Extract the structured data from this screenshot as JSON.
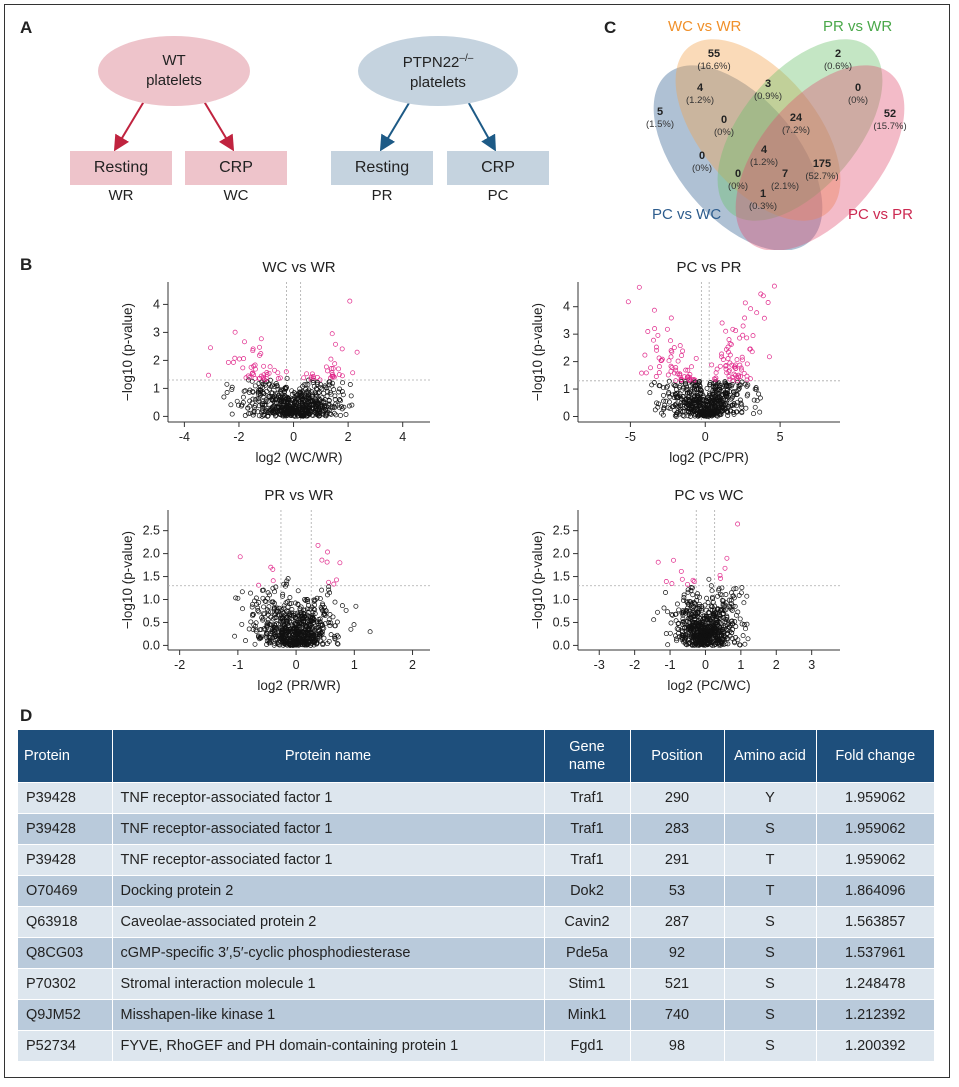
{
  "panel_a": {
    "letter": "A",
    "wt": {
      "line1": "WT",
      "line2": "platelets"
    },
    "ko": {
      "line1": "PTPN22",
      "sup": "–/–",
      "line2": "platelets"
    },
    "boxes": [
      {
        "label": "Resting",
        "code": "WR"
      },
      {
        "label": "CRP",
        "code": "WC"
      },
      {
        "label": "Resting",
        "code": "PR"
      },
      {
        "label": "CRP",
        "code": "PC"
      }
    ],
    "colors": {
      "wt_fill": "#eec4cb",
      "wt_arrow": "#c0233f",
      "ko_fill": "#c5d3df",
      "ko_arrow": "#1d5a86"
    }
  },
  "panel_c": {
    "letter": "C",
    "labels": {
      "wc_wr": "WC vs WR",
      "pr_wr": "PR vs WR",
      "pc_wc": "PC vs WC",
      "pc_pr": "PC vs PR"
    },
    "regions": [
      {
        "n": "55",
        "pct": "(16.6%)"
      },
      {
        "n": "2",
        "pct": "(0.6%)"
      },
      {
        "n": "4",
        "pct": "(1.2%)"
      },
      {
        "n": "3",
        "pct": "(0.9%)"
      },
      {
        "n": "0",
        "pct": "(0%)"
      },
      {
        "n": "5",
        "pct": "(1.5%)"
      },
      {
        "n": "0",
        "pct": "(0%)"
      },
      {
        "n": "24",
        "pct": "(7.2%)"
      },
      {
        "n": "52",
        "pct": "(15.7%)"
      },
      {
        "n": "0",
        "pct": "(0%)"
      },
      {
        "n": "4",
        "pct": "(1.2%)"
      },
      {
        "n": "175",
        "pct": "(52.7%)"
      },
      {
        "n": "0",
        "pct": "(0%)"
      },
      {
        "n": "7",
        "pct": "(2.1%)"
      },
      {
        "n": "1",
        "pct": "(0.3%)"
      }
    ],
    "colors": {
      "wc_wr": "#f0902a",
      "pr_wr": "#4aa84a",
      "pc_wc": "#2e5d8e",
      "pc_pr": "#cc2a52"
    }
  },
  "panel_b": {
    "letter": "B",
    "chart_data": [
      {
        "type": "scatter",
        "title": "WC vs WR",
        "xlabel": "log2 (WC/WR)",
        "ylabel": "−log10 (p-value)",
        "xlim": [
          -4.6,
          5
        ],
        "ylim": [
          -0.2,
          4.8
        ],
        "xticks": [
          -4,
          -2,
          0,
          2,
          4
        ],
        "yticks": [
          0,
          1,
          2,
          3,
          4
        ],
        "threshold_y": 1.3,
        "threshold_x": [
          -0.26,
          0.26
        ]
      },
      {
        "type": "scatter",
        "title": "PC vs PR",
        "xlabel": "log2 (PC/PR)",
        "ylabel": "−log10 (p-value)",
        "xlim": [
          -8.5,
          9
        ],
        "ylim": [
          -0.2,
          4.9
        ],
        "xticks": [
          -5,
          0,
          5
        ],
        "yticks": [
          0,
          1,
          2,
          3,
          4
        ],
        "threshold_y": 1.3,
        "threshold_x": [
          -0.26,
          0.26
        ]
      },
      {
        "type": "scatter",
        "title": "PR vs WR",
        "xlabel": "log2 (PR/WR)",
        "ylabel": "−log10 (p-value)",
        "xlim": [
          -2.2,
          2.3
        ],
        "ylim": [
          -0.1,
          2.95
        ],
        "xticks": [
          -2,
          -1,
          0,
          1,
          2
        ],
        "yticks": [
          0.0,
          0.5,
          1.0,
          1.5,
          2.0,
          2.5
        ],
        "threshold_y": 1.3,
        "threshold_x": [
          -0.26,
          0.26
        ]
      },
      {
        "type": "scatter",
        "title": "PC vs WC",
        "xlabel": "log2 (PC/WC)",
        "ylabel": "−log10 (p-value)",
        "xlim": [
          -3.6,
          3.8
        ],
        "ylim": [
          -0.1,
          2.95
        ],
        "xticks": [
          -3,
          -2,
          -1,
          0,
          1,
          2,
          3
        ],
        "yticks": [
          0.0,
          0.5,
          1.0,
          1.5,
          2.0,
          2.5
        ],
        "threshold_y": 1.3,
        "threshold_x": [
          -0.26,
          0.26
        ]
      }
    ],
    "colors": {
      "significant": "#e0278a",
      "nonsignificant": "#111111",
      "threshold": "#aaaaaa"
    }
  },
  "panel_d": {
    "letter": "D",
    "headers": [
      "Protein",
      "Protein name",
      "Gene name",
      "Position",
      "Amino acid",
      "Fold change"
    ],
    "rows": [
      [
        "P39428",
        "TNF receptor-associated factor 1",
        "Traf1",
        "290",
        "Y",
        "1.959062"
      ],
      [
        "P39428",
        "TNF receptor-associated factor 1",
        "Traf1",
        "283",
        "S",
        "1.959062"
      ],
      [
        "P39428",
        "TNF receptor-associated factor 1",
        "Traf1",
        "291",
        "T",
        "1.959062"
      ],
      [
        "O70469",
        "Docking protein 2",
        "Dok2",
        "53",
        "T",
        "1.864096"
      ],
      [
        "Q63918",
        "Caveolae-associated protein 2",
        "Cavin2",
        "287",
        "S",
        "1.563857"
      ],
      [
        "Q8CG03",
        "cGMP-specific 3′,5′-cyclic phosphodiesterase",
        "Pde5a",
        "92",
        "S",
        "1.537961"
      ],
      [
        "P70302",
        "Stromal interaction molecule 1",
        "Stim1",
        "521",
        "S",
        "1.248478"
      ],
      [
        "Q9JM52",
        "Misshapen-like kinase 1",
        "Mink1",
        "740",
        "S",
        "1.212392"
      ],
      [
        "P52734",
        "FYVE, RhoGEF and PH domain-containing protein 1",
        "Fgd1",
        "98",
        "S",
        "1.200392"
      ]
    ]
  }
}
